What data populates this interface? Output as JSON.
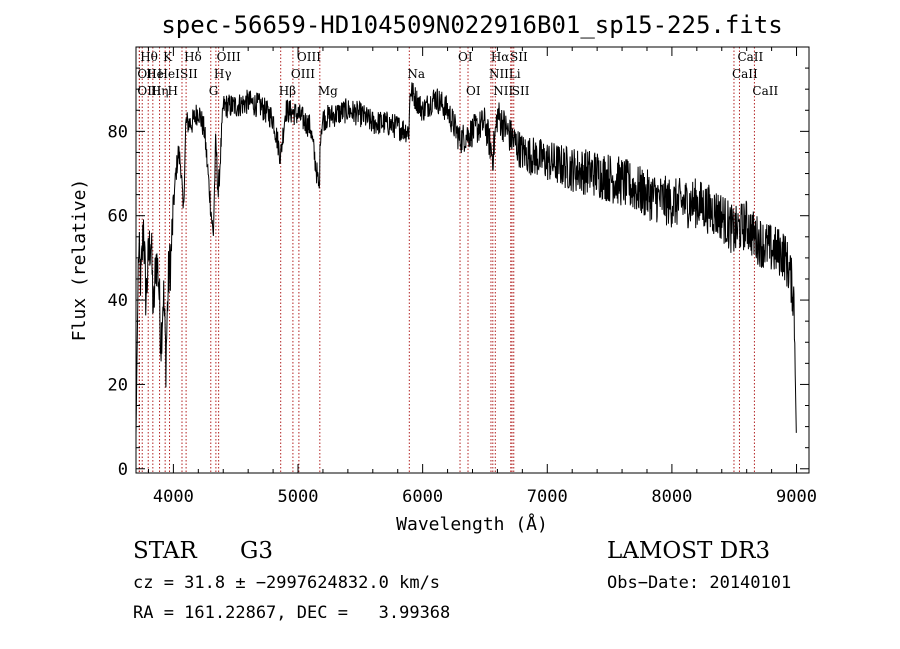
{
  "chart_data": {
    "type": "line",
    "title": "spec-56659-HD104509N022916B01_sp15-225.fits",
    "xlabel": "Wavelength (Å)",
    "ylabel": "Flux (relative)",
    "xlim": [
      3700,
      9100
    ],
    "ylim": [
      -1,
      100
    ],
    "x_ticks": [
      4000,
      5000,
      6000,
      7000,
      8000,
      9000
    ],
    "y_ticks": [
      0,
      20,
      40,
      60,
      80
    ],
    "grid": false,
    "legend": "none",
    "series": [
      {
        "x": [
          3700,
          3720,
          3740,
          3760,
          3780,
          3800,
          3820,
          3840,
          3860,
          3880,
          3900,
          3920,
          3940,
          3960,
          3980,
          4000,
          4020,
          4040,
          4060,
          4080,
          4100,
          4150,
          4200,
          4250,
          4300,
          4320,
          4340,
          4360,
          4400,
          4500,
          4600,
          4700,
          4800,
          4860,
          4900,
          5000,
          5100,
          5170,
          5180,
          5200,
          5300,
          5400,
          5500,
          5600,
          5700,
          5800,
          5890,
          5900,
          6000,
          6100,
          6200,
          6300,
          6400,
          6500,
          6563,
          6600,
          6700,
          6800,
          6900,
          7000,
          7200,
          7400,
          7600,
          7800,
          8000,
          8200,
          8400,
          8498,
          8542,
          8600,
          8662,
          8700,
          8800,
          8900,
          8950,
          8980,
          9000
        ],
        "y": [
          8,
          52,
          44,
          58,
          40,
          50,
          55,
          36,
          50,
          46,
          30,
          42,
          26,
          45,
          50,
          62,
          70,
          75,
          72,
          60,
          82,
          82,
          85,
          80,
          62,
          55,
          78,
          65,
          86,
          86,
          87,
          86,
          83,
          74,
          85,
          84,
          81,
          66,
          80,
          83,
          84,
          85,
          84,
          82,
          82,
          81,
          80,
          90,
          85,
          88,
          85,
          78,
          80,
          82,
          74,
          84,
          79,
          75,
          74,
          73,
          71,
          70,
          68,
          65,
          63,
          63,
          60,
          56,
          57,
          58,
          55,
          54,
          52,
          51,
          46,
          40,
          5
        ]
      }
    ],
    "lines": [
      {
        "w": 3750,
        "label": "Hθ",
        "row": 0
      },
      {
        "w": 3727,
        "label": "OII",
        "row": 1
      },
      {
        "w": 3727,
        "label": "OIII",
        "row": 2
      },
      {
        "w": 3798,
        "label": "He",
        "row": 1
      },
      {
        "w": 3835,
        "label": "Hη",
        "row": 2
      },
      {
        "w": 3889,
        "label": "HeI",
        "row": 1
      },
      {
        "w": 3934,
        "label": "K",
        "row": 0
      },
      {
        "w": 3969,
        "label": "H",
        "row": 2
      },
      {
        "w": 4069,
        "label": "SII",
        "row": 1
      },
      {
        "w": 4102,
        "label": "Hδ",
        "row": 0
      },
      {
        "w": 4300,
        "label": "G",
        "row": 2
      },
      {
        "w": 4341,
        "label": "Hγ",
        "row": 1
      },
      {
        "w": 4363,
        "label": "OIII",
        "row": 0
      },
      {
        "w": 4861,
        "label": "Hβ",
        "row": 2
      },
      {
        "w": 4959,
        "label": "OIII",
        "row": 1
      },
      {
        "w": 5007,
        "label": "OIII",
        "row": 0
      },
      {
        "w": 5175,
        "label": "Mg",
        "row": 2
      },
      {
        "w": 5893,
        "label": "Na",
        "row": 1
      },
      {
        "w": 6300,
        "label": "OI",
        "row": 0
      },
      {
        "w": 6364,
        "label": "OI",
        "row": 2
      },
      {
        "w": 6548,
        "label": "NII",
        "row": 1
      },
      {
        "w": 6563,
        "label": "Hα",
        "row": 0
      },
      {
        "w": 6583,
        "label": "NII",
        "row": 2
      },
      {
        "w": 6707,
        "label": "Li",
        "row": 1
      },
      {
        "w": 6717,
        "label": "SII",
        "row": 0
      },
      {
        "w": 6731,
        "label": "SII",
        "row": 2
      },
      {
        "w": 8498,
        "label": "CaII",
        "row": 1
      },
      {
        "w": 8542,
        "label": "CaII",
        "row": 0
      },
      {
        "w": 8662,
        "label": "CaII",
        "row": 2
      }
    ]
  },
  "info": {
    "class_label": "STAR",
    "subclass_label": "G3",
    "survey_label": "LAMOST DR3",
    "cz_line": "cz = 31.8 ± −2997624832.0 km/s",
    "obs_date_line": "Obs−Date: 20140101",
    "coord_line": "RA = 161.22867, DEC =   3.99368"
  }
}
